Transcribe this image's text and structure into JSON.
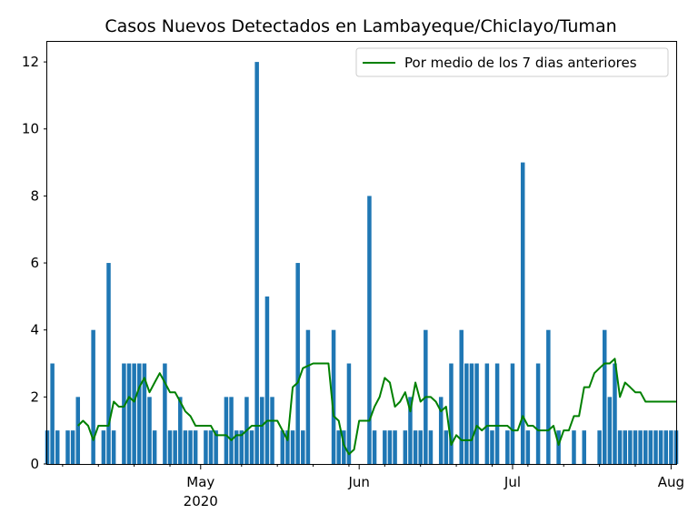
{
  "chart_data": {
    "type": "bar",
    "title": "Casos Nuevos Detectados en Lambayeque/Chiclayo/Tuman",
    "xlabel": "",
    "ylabel": "",
    "ylim": [
      0,
      12.6
    ],
    "xlim": [
      "2020-04-01",
      "2020-08-02"
    ],
    "y_ticks": [
      0,
      2,
      4,
      6,
      8,
      10,
      12
    ],
    "x_major_ticks": [
      {
        "date": "2020-05-01",
        "label": "May",
        "sublabel": "2020"
      },
      {
        "date": "2020-06-01",
        "label": "Jun",
        "sublabel": ""
      },
      {
        "date": "2020-07-01",
        "label": "Jul",
        "sublabel": ""
      },
      {
        "date": "2020-08-01",
        "label": "Aug",
        "sublabel": ""
      }
    ],
    "x_minor_ticks": [
      "2020-04-04",
      "2020-04-11",
      "2020-04-18",
      "2020-04-25",
      "2020-05-09",
      "2020-05-16",
      "2020-05-23",
      "2020-05-30",
      "2020-06-06",
      "2020-06-13",
      "2020-06-20",
      "2020-06-27",
      "2020-07-04",
      "2020-07-11",
      "2020-07-18",
      "2020-07-25"
    ],
    "grid": false,
    "legend_position": "top-right",
    "bar_color": "#1f77b4",
    "line_color": "#008000",
    "series": [
      {
        "type": "bar",
        "x": [
          "2020-04-01",
          "2020-04-02",
          "2020-04-03",
          "2020-04-05",
          "2020-04-06",
          "2020-04-07",
          "2020-04-10",
          "2020-04-12",
          "2020-04-13",
          "2020-04-14",
          "2020-04-16",
          "2020-04-17",
          "2020-04-18",
          "2020-04-19",
          "2020-04-20",
          "2020-04-21",
          "2020-04-22",
          "2020-04-24",
          "2020-04-25",
          "2020-04-26",
          "2020-04-27",
          "2020-04-28",
          "2020-04-29",
          "2020-04-30",
          "2020-05-02",
          "2020-05-03",
          "2020-05-04",
          "2020-05-06",
          "2020-05-07",
          "2020-05-08",
          "2020-05-09",
          "2020-05-10",
          "2020-05-11",
          "2020-05-12",
          "2020-05-13",
          "2020-05-14",
          "2020-05-15",
          "2020-05-17",
          "2020-05-18",
          "2020-05-19",
          "2020-05-20",
          "2020-05-21",
          "2020-05-22",
          "2020-05-27",
          "2020-05-28",
          "2020-05-29",
          "2020-05-30",
          "2020-06-03",
          "2020-06-04",
          "2020-06-06",
          "2020-06-07",
          "2020-06-08",
          "2020-06-10",
          "2020-06-11",
          "2020-06-12",
          "2020-06-13",
          "2020-06-14",
          "2020-06-15",
          "2020-06-17",
          "2020-06-18",
          "2020-06-19",
          "2020-06-21",
          "2020-06-22",
          "2020-06-23",
          "2020-06-24",
          "2020-06-26",
          "2020-06-27",
          "2020-06-28",
          "2020-06-30",
          "2020-07-01",
          "2020-07-03",
          "2020-07-04",
          "2020-07-06",
          "2020-07-08",
          "2020-07-10",
          "2020-07-13",
          "2020-07-15",
          "2020-07-18",
          "2020-07-19",
          "2020-07-20",
          "2020-07-21",
          "2020-07-22",
          "2020-07-23",
          "2020-07-24",
          "2020-07-25",
          "2020-07-26",
          "2020-07-27",
          "2020-07-28",
          "2020-07-29",
          "2020-07-30",
          "2020-07-31",
          "2020-08-01",
          "2020-08-02"
        ],
        "values": [
          1,
          3,
          1,
          1,
          1,
          2,
          4,
          1,
          6,
          1,
          3,
          3,
          3,
          3,
          3,
          2,
          1,
          3,
          1,
          1,
          2,
          1,
          1,
          1,
          1,
          1,
          1,
          2,
          2,
          1,
          1,
          2,
          1,
          12,
          2,
          5,
          2,
          1,
          1,
          1,
          6,
          1,
          4,
          4,
          1,
          1,
          3,
          8,
          1,
          1,
          1,
          1,
          1,
          2,
          1,
          1,
          4,
          1,
          2,
          1,
          3,
          4,
          3,
          3,
          3,
          3,
          1,
          3,
          1,
          3,
          9,
          1,
          3,
          4,
          1,
          1,
          1,
          1,
          4,
          2,
          3,
          1,
          1,
          1,
          1,
          1,
          1,
          1,
          1,
          1,
          1,
          1,
          1
        ]
      },
      {
        "type": "line",
        "name": "Por medio de los 7 dias anteriores",
        "x": [
          "2020-04-07",
          "2020-04-08",
          "2020-04-09",
          "2020-04-10",
          "2020-04-11",
          "2020-04-12",
          "2020-04-13",
          "2020-04-14",
          "2020-04-15",
          "2020-04-16",
          "2020-04-17",
          "2020-04-18",
          "2020-04-19",
          "2020-04-20",
          "2020-04-21",
          "2020-04-22",
          "2020-04-23",
          "2020-04-24",
          "2020-04-25",
          "2020-04-26",
          "2020-04-27",
          "2020-04-28",
          "2020-04-29",
          "2020-04-30",
          "2020-05-01",
          "2020-05-02",
          "2020-05-03",
          "2020-05-04",
          "2020-05-05",
          "2020-05-06",
          "2020-05-07",
          "2020-05-08",
          "2020-05-09",
          "2020-05-10",
          "2020-05-11",
          "2020-05-12",
          "2020-05-13",
          "2020-05-14",
          "2020-05-15",
          "2020-05-16",
          "2020-05-17",
          "2020-05-18",
          "2020-05-19",
          "2020-05-20",
          "2020-05-21",
          "2020-05-23",
          "2020-05-24",
          "2020-05-25",
          "2020-05-26",
          "2020-05-27",
          "2020-05-28",
          "2020-05-29",
          "2020-05-30",
          "2020-05-31",
          "2020-06-01",
          "2020-06-02",
          "2020-06-03",
          "2020-06-04",
          "2020-06-05",
          "2020-06-06",
          "2020-06-07",
          "2020-06-08",
          "2020-06-09",
          "2020-06-10",
          "2020-06-11",
          "2020-06-12",
          "2020-06-13",
          "2020-06-14",
          "2020-06-15",
          "2020-06-16",
          "2020-06-17",
          "2020-06-18",
          "2020-06-19",
          "2020-06-20",
          "2020-06-21",
          "2020-06-22",
          "2020-06-23",
          "2020-06-24",
          "2020-06-25",
          "2020-06-26",
          "2020-06-27",
          "2020-06-28",
          "2020-06-29",
          "2020-06-30",
          "2020-07-01",
          "2020-07-02",
          "2020-07-03",
          "2020-07-04",
          "2020-07-05",
          "2020-07-06",
          "2020-07-07",
          "2020-07-08",
          "2020-07-09",
          "2020-07-10",
          "2020-07-11",
          "2020-07-12",
          "2020-07-13",
          "2020-07-14",
          "2020-07-15",
          "2020-07-16",
          "2020-07-17",
          "2020-07-18",
          "2020-07-19",
          "2020-07-20",
          "2020-07-21",
          "2020-07-22",
          "2020-07-23",
          "2020-07-24",
          "2020-07-25",
          "2020-07-26",
          "2020-07-27",
          "2020-07-28",
          "2020-07-29",
          "2020-07-30",
          "2020-07-31",
          "2020-08-01",
          "2020-08-02"
        ],
        "values": [
          1.14,
          1.29,
          1.14,
          0.71,
          1.14,
          1.14,
          1.14,
          1.86,
          1.71,
          1.71,
          2.0,
          1.86,
          2.29,
          2.57,
          2.14,
          2.43,
          2.71,
          2.43,
          2.14,
          2.14,
          1.86,
          1.57,
          1.43,
          1.14,
          1.14,
          1.14,
          1.14,
          0.86,
          0.86,
          0.86,
          0.71,
          0.86,
          0.86,
          1.0,
          1.14,
          1.14,
          1.14,
          1.29,
          1.29,
          1.29,
          1.0,
          0.71,
          2.29,
          2.43,
          2.86,
          3.0,
          3.0,
          3.0,
          3.0,
          1.43,
          1.29,
          0.57,
          0.29,
          0.43,
          1.29,
          1.29,
          1.29,
          1.71,
          2.0,
          2.57,
          2.43,
          1.71,
          1.86,
          2.14,
          1.57,
          2.43,
          1.86,
          2.0,
          2.0,
          1.86,
          1.57,
          1.71,
          0.57,
          0.86,
          0.71,
          0.71,
          0.71,
          1.14,
          1.0,
          1.14,
          1.14,
          1.14,
          1.14,
          1.14,
          1.0,
          1.0,
          1.43,
          1.14,
          1.14,
          1.0,
          1.0,
          1.0,
          1.14,
          0.57,
          1.0,
          1.0,
          1.43,
          1.43,
          2.29,
          2.29,
          2.71,
          2.86,
          3.0,
          3.0,
          3.14,
          2.0,
          2.43,
          2.29,
          2.14,
          2.14,
          1.86,
          1.86,
          1.86,
          1.86,
          1.86,
          1.86,
          1.86
        ]
      }
    ]
  }
}
